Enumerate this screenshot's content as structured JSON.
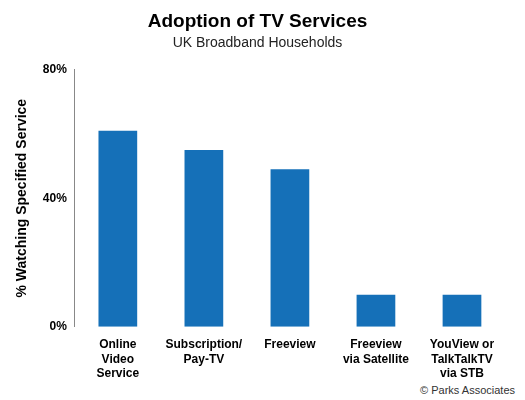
{
  "chart_data": {
    "type": "bar",
    "title": "Adoption of TV Services",
    "subtitle": "UK Broadband Households",
    "y_label": "% Watching Specified Service",
    "categories": [
      [
        "Online",
        "Video",
        "Service"
      ],
      [
        "Subscription/",
        "Pay-TV"
      ],
      [
        "Freeview"
      ],
      [
        "Freeview",
        "via Satellite"
      ],
      [
        "YouView or",
        "TalkTalkTV",
        "via STB"
      ]
    ],
    "values": [
      61,
      55,
      49,
      10,
      10
    ],
    "color": "#1570b8",
    "ylim": [
      0,
      80
    ],
    "yticks": [
      {
        "value": 0,
        "label": "0%"
      },
      {
        "value": 40,
        "label": "40%"
      },
      {
        "value": 80,
        "label": "80%"
      }
    ],
    "grid": false,
    "annotation": "© Parks Associates"
  }
}
